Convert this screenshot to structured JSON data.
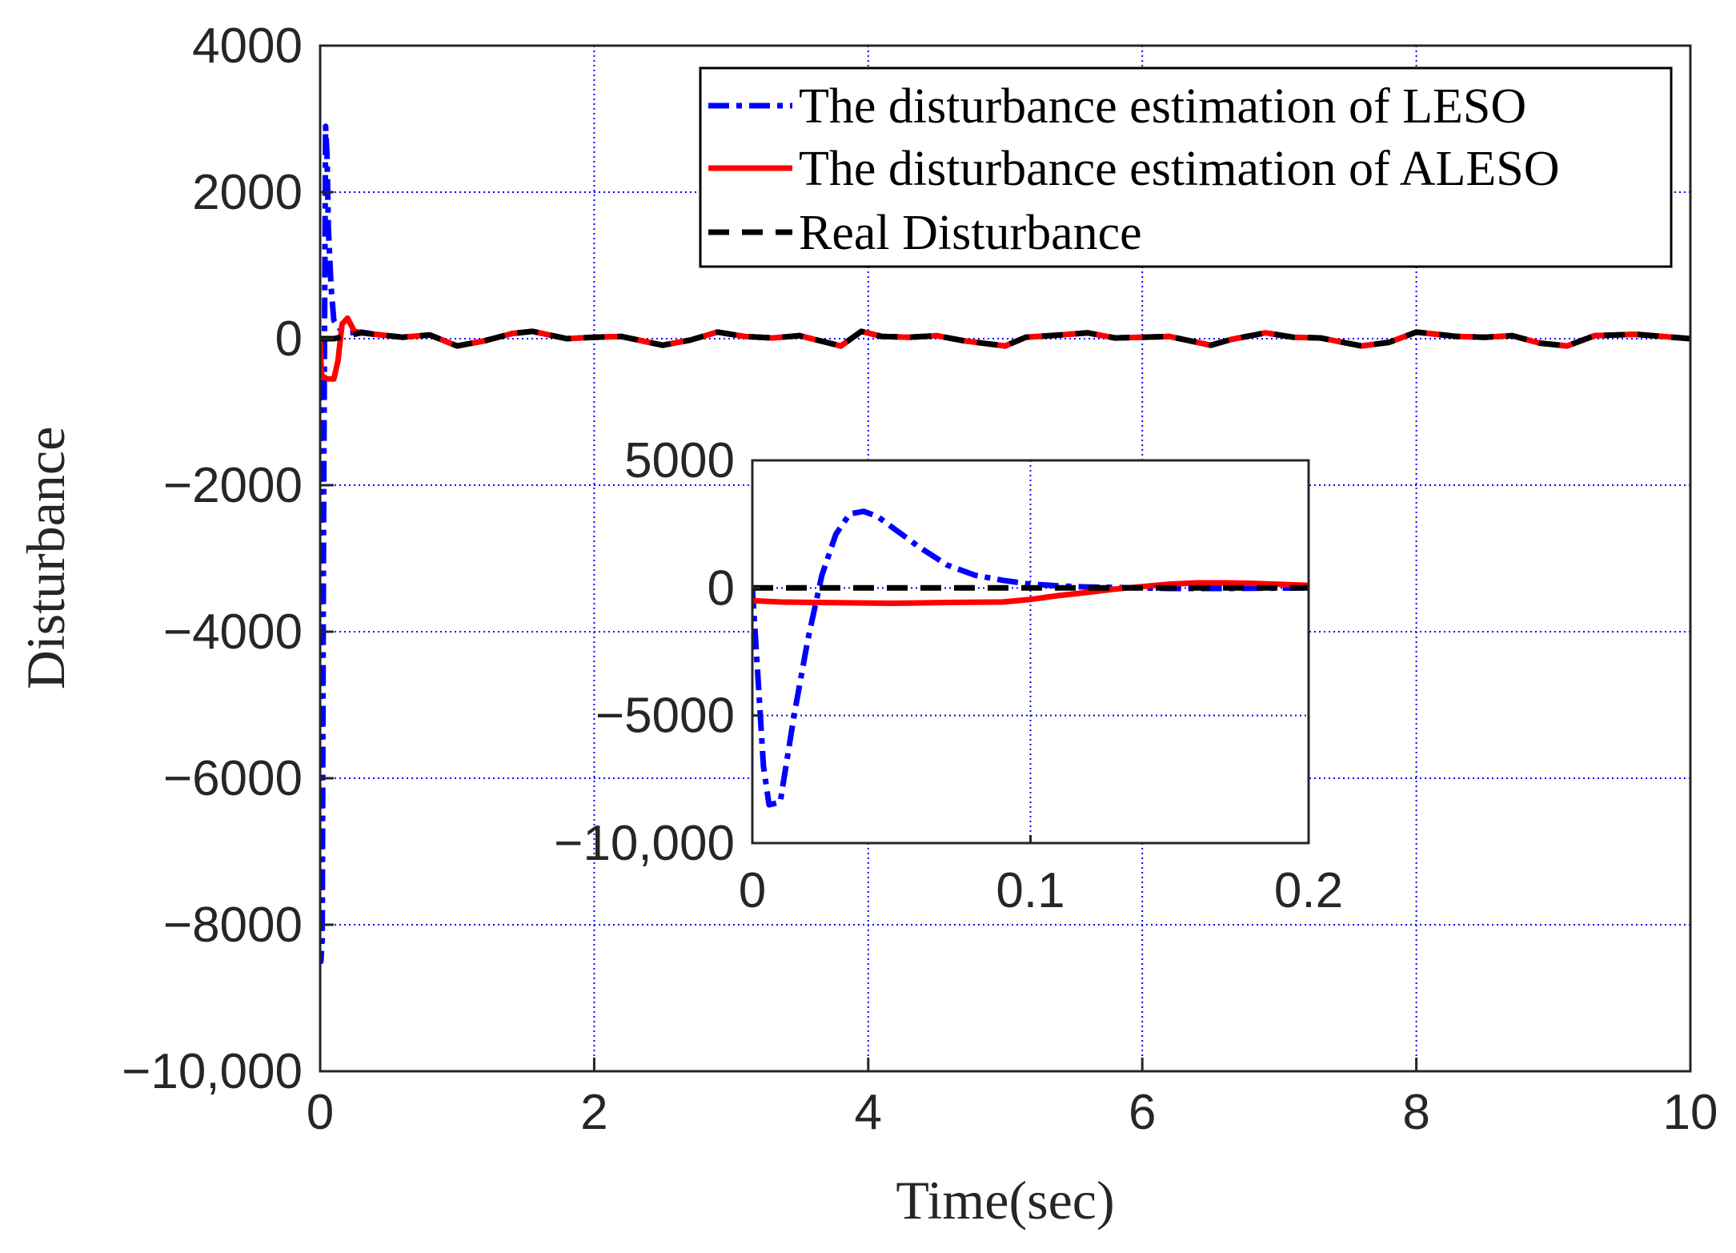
{
  "chart_data": [
    {
      "type": "line",
      "name": "main",
      "title": "",
      "xlabel": "Time(sec)",
      "ylabel": "Disturbance",
      "xlim": [
        0,
        10
      ],
      "ylim": [
        -10000,
        4000
      ],
      "xticks": [
        0,
        2,
        4,
        6,
        8,
        10
      ],
      "xtick_labels": [
        "0",
        "2",
        "4",
        "6",
        "8",
        "10"
      ],
      "yticks": [
        -10000,
        -8000,
        -6000,
        -4000,
        -2000,
        0,
        2000,
        4000
      ],
      "ytick_labels": [
        "−10,000",
        "−8000",
        "−6000",
        "−4000",
        "−2000",
        "0",
        "2000",
        "4000"
      ],
      "grid": true,
      "legend_position": "top-right",
      "series": [
        {
          "name": "The disturbance estimation of LESO",
          "color": "#0000ff",
          "style": "dash-dot",
          "x": [
            0,
            0.005,
            0.015,
            0.025,
            0.04,
            0.05,
            0.06,
            0.08,
            0.1,
            0.15,
            0.2,
            0.3,
            0.4,
            0.6,
            0.8,
            1.0,
            1.2,
            1.4,
            1.55,
            1.8,
            2.0,
            2.2,
            2.5,
            2.7,
            2.9,
            3.1,
            3.3,
            3.5,
            3.8,
            3.95,
            4.1,
            4.3,
            4.5,
            4.7,
            5.0,
            5.15,
            5.4,
            5.6,
            5.8,
            6.0,
            6.2,
            6.5,
            6.65,
            6.9,
            7.1,
            7.3,
            7.6,
            7.8,
            8.0,
            8.3,
            8.5,
            8.7,
            8.9,
            9.1,
            9.3,
            9.6,
            9.8,
            10
          ],
          "y": [
            0,
            -8500,
            -8200,
            -2500,
            2900,
            2500,
            1500,
            700,
            250,
            120,
            80,
            90,
            60,
            20,
            50,
            -100,
            -30,
            70,
            100,
            0,
            20,
            30,
            -90,
            -20,
            90,
            30,
            10,
            40,
            -100,
            100,
            30,
            20,
            40,
            -30,
            -100,
            20,
            50,
            80,
            10,
            20,
            30,
            -90,
            -10,
            80,
            20,
            10,
            -100,
            -50,
            90,
            30,
            20,
            40,
            -60,
            -100,
            40,
            60,
            30,
            0
          ]
        },
        {
          "name": "The disturbance estimation of ALESO",
          "color": "#ff0000",
          "style": "solid",
          "x": [
            0,
            0.01,
            0.05,
            0.1,
            0.13,
            0.16,
            0.2,
            0.25,
            0.3,
            0.4,
            0.6,
            0.8,
            1.0,
            1.2,
            1.4,
            1.55,
            1.8,
            2.0,
            2.2,
            2.5,
            2.7,
            2.9,
            3.1,
            3.3,
            3.5,
            3.8,
            3.95,
            4.1,
            4.3,
            4.5,
            4.7,
            5.0,
            5.15,
            5.4,
            5.6,
            5.8,
            6.0,
            6.2,
            6.5,
            6.65,
            6.9,
            7.1,
            7.3,
            7.6,
            7.8,
            8.0,
            8.3,
            8.5,
            8.7,
            8.9,
            9.1,
            9.3,
            9.6,
            9.8,
            10
          ],
          "y": [
            0,
            -500,
            -550,
            -550,
            -300,
            200,
            280,
            100,
            80,
            60,
            20,
            50,
            -100,
            -30,
            70,
            100,
            0,
            20,
            30,
            -90,
            -20,
            90,
            30,
            10,
            40,
            -100,
            100,
            30,
            20,
            40,
            -30,
            -100,
            20,
            50,
            80,
            10,
            20,
            30,
            -90,
            -10,
            80,
            20,
            10,
            -100,
            -50,
            90,
            30,
            20,
            40,
            -60,
            -100,
            40,
            60,
            30,
            0
          ]
        },
        {
          "name": "Real Disturbance",
          "color": "#000000",
          "style": "dashed",
          "x": [
            0,
            0.1,
            0.3,
            0.4,
            0.6,
            0.8,
            1.0,
            1.2,
            1.4,
            1.55,
            1.8,
            2.0,
            2.2,
            2.5,
            2.7,
            2.9,
            3.1,
            3.3,
            3.5,
            3.8,
            3.95,
            4.1,
            4.3,
            4.5,
            4.7,
            5.0,
            5.15,
            5.4,
            5.6,
            5.8,
            6.0,
            6.2,
            6.5,
            6.65,
            6.9,
            7.1,
            7.3,
            7.6,
            7.8,
            8.0,
            8.3,
            8.5,
            8.7,
            8.9,
            9.1,
            9.3,
            9.6,
            9.8,
            10
          ],
          "y": [
            0,
            0,
            80,
            60,
            20,
            50,
            -100,
            -30,
            70,
            100,
            0,
            20,
            30,
            -90,
            -20,
            90,
            30,
            10,
            40,
            -100,
            100,
            30,
            20,
            40,
            -30,
            -100,
            20,
            50,
            80,
            10,
            20,
            30,
            -90,
            -10,
            80,
            20,
            10,
            -100,
            -50,
            90,
            30,
            20,
            40,
            -60,
            -100,
            40,
            60,
            30,
            0
          ]
        }
      ]
    },
    {
      "type": "line",
      "name": "inset",
      "title": "",
      "xlabel": "",
      "ylabel": "",
      "xlim": [
        0,
        0.2
      ],
      "ylim": [
        -10000,
        5000
      ],
      "xticks": [
        0,
        0.1,
        0.2
      ],
      "xtick_labels": [
        "0",
        "0.1",
        "0.2"
      ],
      "yticks": [
        -10000,
        -5000,
        0,
        5000
      ],
      "ytick_labels": [
        "−10,000",
        "−5000",
        "0",
        "5000"
      ],
      "grid": true,
      "series": [
        {
          "name": "The disturbance estimation of LESO",
          "color": "#0000ff",
          "style": "dash-dot",
          "x": [
            0,
            0.002,
            0.004,
            0.006,
            0.01,
            0.015,
            0.02,
            0.025,
            0.03,
            0.035,
            0.04,
            0.045,
            0.05,
            0.06,
            0.07,
            0.08,
            0.09,
            0.1,
            0.11,
            0.12,
            0.13,
            0.14,
            0.15,
            0.17,
            0.2
          ],
          "y": [
            0,
            -3500,
            -7000,
            -8500,
            -8400,
            -5000,
            -2000,
            500,
            2100,
            2900,
            3000,
            2800,
            2400,
            1600,
            900,
            500,
            300,
            150,
            80,
            40,
            20,
            0,
            -20,
            -20,
            0
          ]
        },
        {
          "name": "The disturbance estimation of ALESO",
          "color": "#ff0000",
          "style": "solid",
          "x": [
            0,
            0.01,
            0.03,
            0.05,
            0.07,
            0.09,
            0.1,
            0.11,
            0.12,
            0.13,
            0.14,
            0.15,
            0.16,
            0.17,
            0.18,
            0.2
          ],
          "y": [
            -500,
            -550,
            -580,
            -600,
            -570,
            -550,
            -450,
            -300,
            -180,
            -50,
            50,
            150,
            200,
            200,
            180,
            100
          ]
        },
        {
          "name": "Real Disturbance",
          "color": "#000000",
          "style": "dashed",
          "x": [
            0,
            0.05,
            0.1,
            0.15,
            0.2
          ],
          "y": [
            0,
            0,
            0,
            0,
            0
          ]
        }
      ]
    }
  ]
}
